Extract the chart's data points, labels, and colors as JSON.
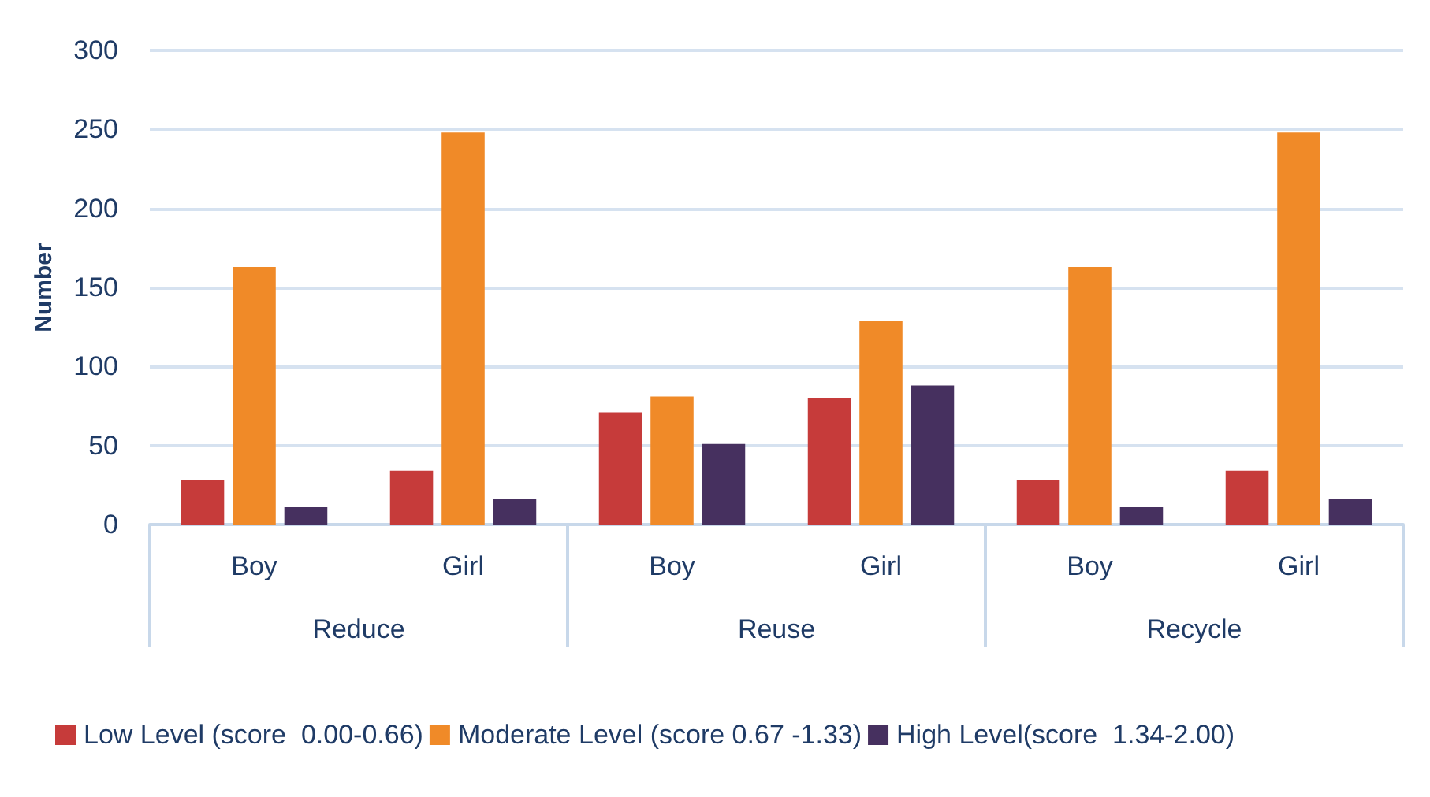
{
  "chart_data": {
    "type": "bar",
    "ylabel": "Number",
    "categories": [
      "Boy",
      "Girl",
      "Boy",
      "Girl",
      "Boy",
      "Girl"
    ],
    "annotations": [
      "Reduce",
      "Reuse",
      "Recycle"
    ],
    "series": [
      {
        "name": "Low Level (score  0.00-0.66)",
        "color": "#c63b3a",
        "values": [
          28,
          34,
          71,
          80,
          28,
          34
        ]
      },
      {
        "name": "Moderate Level (score 0.67 -1.33)",
        "color": "#f08a28",
        "values": [
          163,
          248,
          81,
          129,
          163,
          248
        ]
      },
      {
        "name": "High Level(score  1.34-2.00)",
        "color": "#46305f",
        "values": [
          11,
          16,
          51,
          88,
          11,
          16
        ]
      }
    ],
    "ylim": [
      0,
      300
    ],
    "yticks": [
      0,
      50,
      100,
      150,
      200,
      250,
      300
    ],
    "grid": "y",
    "legend": "bottom left"
  }
}
